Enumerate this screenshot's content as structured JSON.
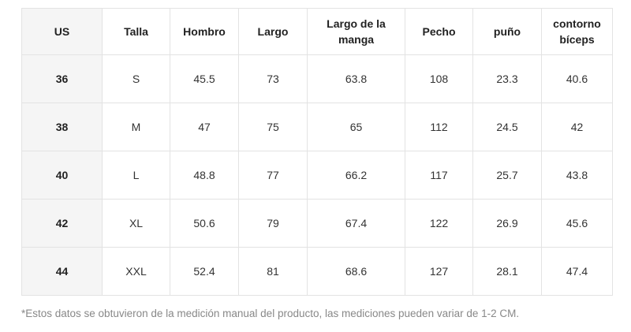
{
  "table": {
    "headers": [
      "US",
      "Talla",
      "Hombro",
      "Largo",
      "Largo de la manga",
      "Pecho",
      "puño",
      "contorno bíceps"
    ],
    "rows": [
      [
        "36",
        "S",
        "45.5",
        "73",
        "63.8",
        "108",
        "23.3",
        "40.6"
      ],
      [
        "38",
        "M",
        "47",
        "75",
        "65",
        "112",
        "24.5",
        "42"
      ],
      [
        "40",
        "L",
        "48.8",
        "77",
        "66.2",
        "117",
        "25.7",
        "43.8"
      ],
      [
        "42",
        "XL",
        "50.6",
        "79",
        "67.4",
        "122",
        "26.9",
        "45.6"
      ],
      [
        "44",
        "XXL",
        "52.4",
        "81",
        "68.6",
        "127",
        "28.1",
        "47.4"
      ]
    ]
  },
  "footnote": "*Estos datos se obtuvieron de la medición manual del producto, las mediciones pueden variar de 1-2 CM."
}
